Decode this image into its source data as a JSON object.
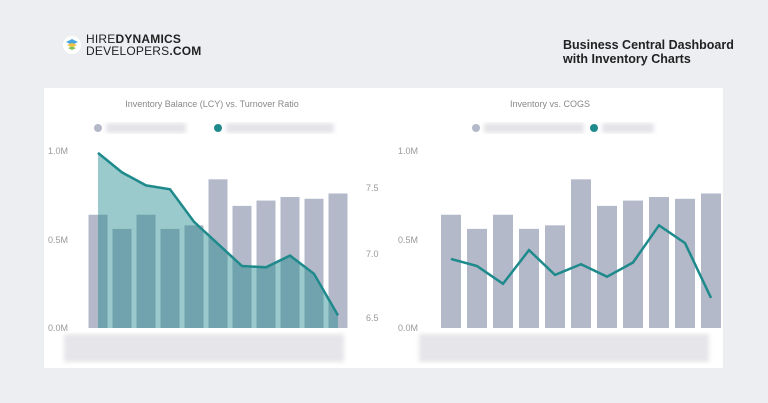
{
  "logo": {
    "line1_light": "HIRE",
    "line1_bold": "DYNAMICS",
    "line2_light": "DEVELOPERS",
    "line2_bold": ".COM"
  },
  "header": {
    "title_line1": "Business Central Dashboard",
    "title_line2": "with Inventory Charts"
  },
  "colors": {
    "bar": "#b3b9c9",
    "line": "#1e8a8c",
    "area": "#1e8a8c"
  },
  "chart_data": [
    {
      "type": "bar+line",
      "title": "Inventory Balance (LCY) vs. Turnover Ratio",
      "left_ticks": [
        "1.0M",
        "0.5M",
        "0.0M"
      ],
      "right_ticks": [
        "7.5",
        "7.0",
        "6.5"
      ],
      "ylim": [
        0,
        1000000
      ],
      "y2lim": [
        6.5,
        7.5
      ],
      "bar_values": [
        640000,
        560000,
        640000,
        560000,
        580000,
        840000,
        690000,
        720000,
        740000,
        730000,
        760000
      ],
      "line_values": [
        7.77,
        7.62,
        7.52,
        7.49,
        7.24,
        7.07,
        6.9,
        6.89,
        6.98,
        6.84,
        6.52
      ]
    },
    {
      "type": "bar+line",
      "title": "Inventory vs. COGS",
      "left_ticks": [
        "1.0M",
        "0.5M",
        "0.0M"
      ],
      "ylim": [
        0,
        1000000
      ],
      "bar_values": [
        640000,
        560000,
        640000,
        560000,
        580000,
        840000,
        690000,
        720000,
        740000,
        730000,
        760000
      ],
      "line_values": [
        390000,
        350000,
        250000,
        440000,
        300000,
        360000,
        290000,
        370000,
        580000,
        480000,
        170000
      ]
    }
  ]
}
